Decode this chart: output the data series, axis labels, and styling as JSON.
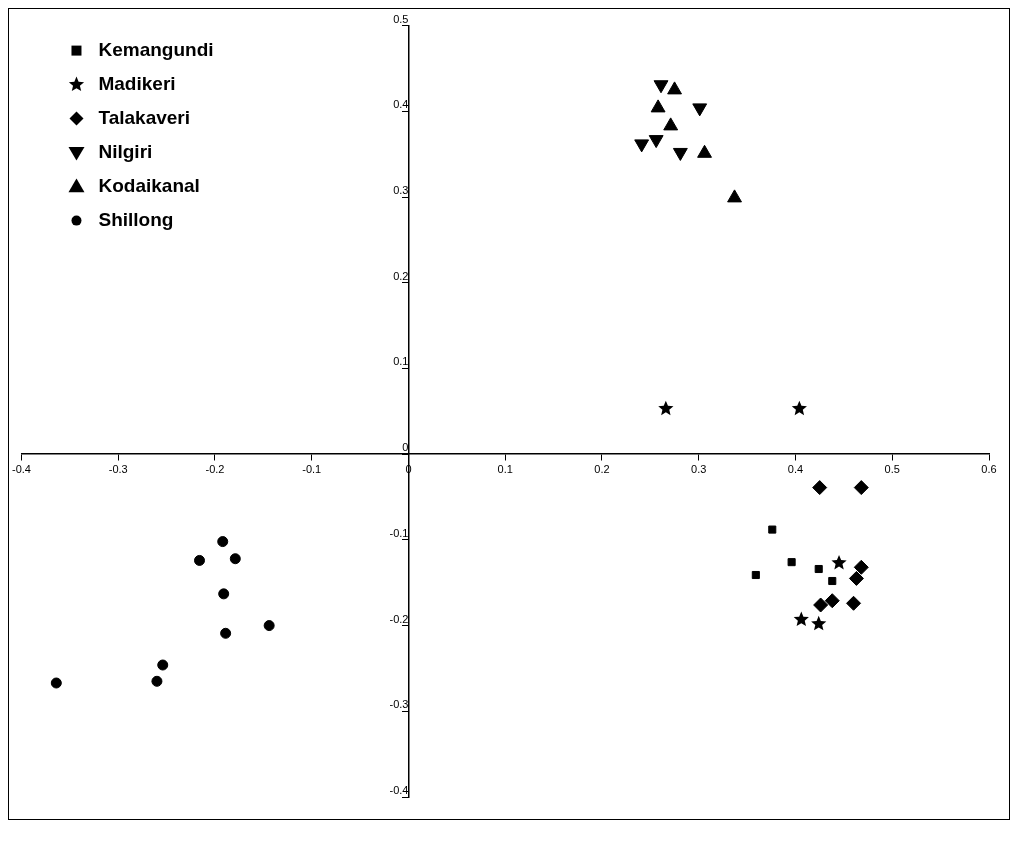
{
  "chart_data": {
    "type": "scatter",
    "xlim": [
      -0.4,
      0.6
    ],
    "ylim": [
      -0.4,
      0.5
    ],
    "xticks": [
      -0.4,
      -0.3,
      -0.2,
      -0.1,
      0,
      0.1,
      0.2,
      0.3,
      0.4,
      0.5,
      0.6
    ],
    "yticks": [
      -0.4,
      -0.3,
      -0.2,
      -0.1,
      0,
      0.1,
      0.2,
      0.3,
      0.4,
      0.5
    ],
    "grid": false,
    "legend": "top left",
    "series": [
      {
        "name": "Kemangundi",
        "color": "#000000",
        "marker": "square",
        "x": [
          0.376,
          0.396,
          0.424,
          0.438,
          0.359
        ],
        "values": [
          -0.088,
          -0.126,
          -0.134,
          -0.148,
          -0.141
        ]
      },
      {
        "name": "Madikeri",
        "color": "#000000",
        "marker": "star",
        "x": [
          0.266,
          0.404,
          0.445,
          0.406,
          0.424
        ],
        "values": [
          0.053,
          0.053,
          -0.127,
          -0.193,
          -0.198
        ]
      },
      {
        "name": "Talakaveri",
        "color": "#000000",
        "marker": "diamond",
        "x": [
          0.425,
          0.468,
          0.468,
          0.463,
          0.438,
          0.426,
          0.46
        ],
        "values": [
          -0.039,
          -0.039,
          -0.132,
          -0.145,
          -0.171,
          -0.176,
          -0.174
        ]
      },
      {
        "name": "Nilgiri",
        "color": "#000000",
        "marker": "triangle-down",
        "x": [
          0.261,
          0.301,
          0.241,
          0.256,
          0.281
        ],
        "values": [
          0.431,
          0.404,
          0.362,
          0.367,
          0.352
        ]
      },
      {
        "name": "Kodaikanal",
        "color": "#000000",
        "marker": "triangle",
        "x": [
          0.275,
          0.258,
          0.271,
          0.306,
          0.337
        ],
        "values": [
          0.425,
          0.404,
          0.383,
          0.351,
          0.299
        ]
      },
      {
        "name": "Shillong",
        "color": "#000000",
        "marker": "circle",
        "x": [
          -0.192,
          -0.216,
          -0.179,
          -0.191,
          -0.144,
          -0.189,
          -0.254,
          -0.26,
          -0.364
        ],
        "values": [
          -0.102,
          -0.124,
          -0.122,
          -0.163,
          -0.2,
          -0.209,
          -0.246,
          -0.265,
          -0.267
        ]
      }
    ]
  }
}
